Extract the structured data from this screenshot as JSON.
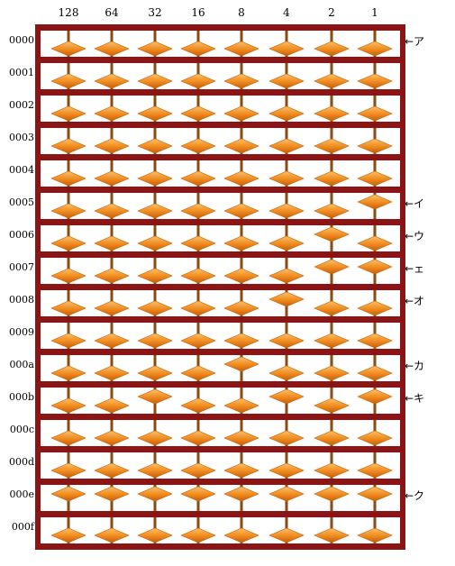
{
  "columns": [
    "128",
    "64",
    "32",
    "16",
    "8",
    "4",
    "2",
    "1"
  ],
  "rows": [
    {
      "label": "0000",
      "bits": [
        0,
        0,
        0,
        0,
        0,
        0,
        0,
        0
      ],
      "annotation": "←ア"
    },
    {
      "label": "0001",
      "bits": [
        0,
        0,
        0,
        0,
        0,
        0,
        0,
        0
      ],
      "annotation": ""
    },
    {
      "label": "0002",
      "bits": [
        0,
        0,
        0,
        0,
        0,
        0,
        0,
        0
      ],
      "annotation": ""
    },
    {
      "label": "0003",
      "bits": [
        0,
        0,
        0,
        0,
        0,
        0,
        0,
        0
      ],
      "annotation": ""
    },
    {
      "label": "0004",
      "bits": [
        0,
        0,
        0,
        0,
        0,
        0,
        0,
        0
      ],
      "annotation": ""
    },
    {
      "label": "0005",
      "bits": [
        0,
        0,
        0,
        0,
        0,
        0,
        0,
        1
      ],
      "annotation": "←イ"
    },
    {
      "label": "0006",
      "bits": [
        0,
        0,
        0,
        0,
        0,
        0,
        1,
        0
      ],
      "annotation": "←ウ"
    },
    {
      "label": "0007",
      "bits": [
        0,
        0,
        0,
        0,
        0,
        0,
        1,
        1
      ],
      "annotation": "←ェ"
    },
    {
      "label": "0008",
      "bits": [
        0,
        0,
        0,
        0,
        0,
        1,
        0,
        0
      ],
      "annotation": "←オ"
    },
    {
      "label": "0009",
      "bits": [
        0,
        0,
        0,
        0,
        0,
        0,
        0,
        0
      ],
      "annotation": ""
    },
    {
      "label": "000a",
      "bits": [
        0,
        0,
        0,
        0,
        1,
        0,
        0,
        0
      ],
      "annotation": "←カ"
    },
    {
      "label": "000b",
      "bits": [
        0,
        0,
        1,
        0,
        0,
        1,
        0,
        1
      ],
      "annotation": "←キ"
    },
    {
      "label": "000c",
      "bits": [
        0,
        0,
        0,
        0,
        0,
        0,
        0,
        0
      ],
      "annotation": ""
    },
    {
      "label": "000d",
      "bits": [
        0,
        0,
        0,
        0,
        0,
        0,
        0,
        0
      ],
      "annotation": ""
    },
    {
      "label": "000e",
      "bits": [
        1,
        1,
        1,
        1,
        1,
        1,
        1,
        1
      ],
      "annotation": "←ク"
    },
    {
      "label": "000f",
      "bits": [
        0,
        0,
        0,
        0,
        0,
        0,
        0,
        0
      ],
      "annotation": ""
    }
  ],
  "colors": {
    "frame": "#8b1414",
    "rod": "#8b4a14",
    "bead_light": "#fbc06a",
    "bead_mid": "#f08a1c",
    "bead_dark": "#c4600c"
  }
}
